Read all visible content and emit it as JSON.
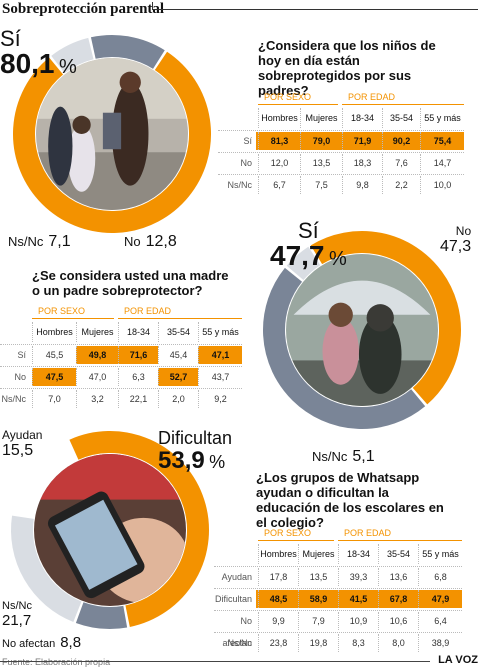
{
  "header": {
    "title": "Sobreprotección parental"
  },
  "colors": {
    "accent": "#f39200",
    "slate": "#7a8597",
    "light": "#d9dde3"
  },
  "footer": {
    "source": "Fuente: Elaboración propia",
    "brand": "LA VOZ"
  },
  "chart_data": [
    {
      "type": "pie",
      "title": "¿Considera que los niños de hoy en día están sobreprotegidos por sus padres?",
      "slices": [
        {
          "name": "Sí",
          "value": 80.1,
          "color": "#f39200"
        },
        {
          "name": "Ns/Nc",
          "value": 7.1,
          "color": "#d9dde3"
        },
        {
          "name": "No",
          "value": 12.8,
          "color": "#7a8597"
        }
      ],
      "labels": {
        "main": {
          "name": "Sí",
          "value": "80,1",
          "unit": "%"
        },
        "a": {
          "name": "Ns/Nc",
          "value": "7,1"
        },
        "b": {
          "name": "No",
          "value": "12,8"
        }
      },
      "table": {
        "group1": "POR SEXO",
        "group2": "POR EDAD",
        "columns": [
          "Hombres",
          "Mujeres",
          "18-34",
          "35-54",
          "55 y más"
        ],
        "rows": [
          {
            "label": "Sí",
            "values": [
              "81,3",
              "79,0",
              "71,9",
              "90,2",
              "75,4"
            ]
          },
          {
            "label": "No",
            "values": [
              "12,0",
              "13,5",
              "18,3",
              "7,6",
              "14,7"
            ]
          },
          {
            "label": "Ns/Nc",
            "values": [
              "6,7",
              "7,5",
              "9,8",
              "2,2",
              "10,0"
            ]
          }
        ],
        "highlight_rows": [
          0
        ]
      }
    },
    {
      "type": "pie",
      "title": "¿Se considera usted una madre o un padre sobreprotector?",
      "slices": [
        {
          "name": "Sí",
          "value": 47.7,
          "color": "#f39200"
        },
        {
          "name": "No",
          "value": 47.3,
          "color": "#7a8597"
        },
        {
          "name": "Ns/Nc",
          "value": 5.1,
          "color": "#d9dde3"
        }
      ],
      "labels": {
        "main": {
          "name": "Sí",
          "value": "47,7",
          "unit": "%"
        },
        "a": {
          "name": "No",
          "value": "47,3"
        },
        "b": {
          "name": "Ns/Nc",
          "value": "5,1"
        }
      },
      "table": {
        "group1": "POR SEXO",
        "group2": "POR EDAD",
        "columns": [
          "Hombres",
          "Mujeres",
          "18-34",
          "35-54",
          "55 y más"
        ],
        "rows": [
          {
            "label": "Sí",
            "values": [
              "45,5",
              "49,8",
              "71,6",
              "45,4",
              "47,1"
            ]
          },
          {
            "label": "No",
            "values": [
              "47,5",
              "47,0",
              "6,3",
              "52,7",
              "43,7"
            ]
          },
          {
            "label": "Ns/Nc",
            "values": [
              "7,0",
              "3,2",
              "22,1",
              "2,0",
              "9,2"
            ]
          }
        ],
        "highlight_cells": [
          [
            0,
            1
          ],
          [
            0,
            2
          ],
          [
            0,
            4
          ],
          [
            1,
            0
          ],
          [
            1,
            3
          ]
        ]
      }
    },
    {
      "type": "pie",
      "title": "¿Los grupos de Whatsapp ayudan o dificultan la educación de los escolares en el colegio?",
      "slices": [
        {
          "name": "Dificultan",
          "value": 53.9,
          "color": "#f39200"
        },
        {
          "name": "No afectan",
          "value": 8.8,
          "color": "#7a8597"
        },
        {
          "name": "Ns/Nc",
          "value": 21.7,
          "color": "#d9dde3"
        },
        {
          "name": "Ayudan",
          "value": 15.5,
          "color": "#ffffff"
        }
      ],
      "labels": {
        "main": {
          "name": "Dificultan",
          "value": "53,9",
          "unit": "%"
        },
        "a": {
          "name": "Ayudan",
          "value": "15,5"
        },
        "b": {
          "name": "Ns/Nc",
          "value": "21,7"
        },
        "c": {
          "name": "No afectan",
          "value": "8,8"
        }
      },
      "table": {
        "group1": "POR SEXO",
        "group2": "POR EDAD",
        "columns": [
          "Hombres",
          "Mujeres",
          "18-34",
          "35-54",
          "55 y más"
        ],
        "rows": [
          {
            "label": "Ayudan",
            "values": [
              "17,8",
              "13,5",
              "39,3",
              "13,6",
              "6,8"
            ]
          },
          {
            "label": "Dificultan",
            "values": [
              "48,5",
              "58,9",
              "41,5",
              "67,8",
              "47,9"
            ]
          },
          {
            "label": "No afectan",
            "values": [
              "9,9",
              "7,9",
              "10,9",
              "10,6",
              "6,4"
            ]
          },
          {
            "label": "Ns/Nc",
            "values": [
              "23,8",
              "19,8",
              "8,3",
              "8,0",
              "38,9"
            ]
          }
        ],
        "highlight_rows": [
          1
        ]
      }
    }
  ]
}
